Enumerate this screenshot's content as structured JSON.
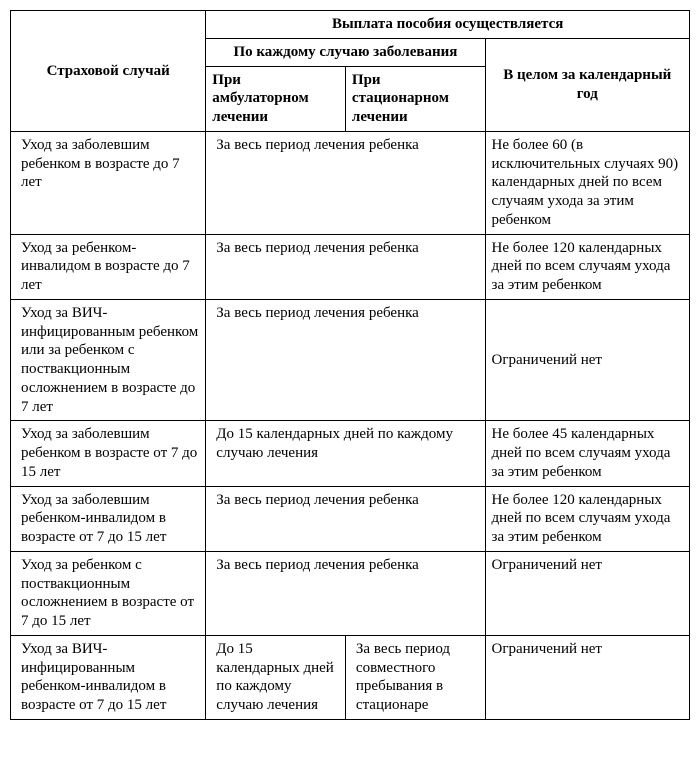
{
  "header": {
    "col1": "Страховой случай",
    "top": "Выплата пособия осуществляется",
    "mid_left": "По каждому случаю заболевания",
    "mid_right": "В целом за календарный год",
    "sub_left": "При амбулаторном лечении",
    "sub_right": "При стационарном лечении"
  },
  "rows": [
    {
      "case": "Уход за заболевшим ребенком в возрасте до 7 лет",
      "per_case": "За весь период лечения ребенка",
      "per_year": "Не более 60 (в исключительных случаях 90) календарных дней по всем случаям ухода за этим ребенком"
    },
    {
      "case": "Уход за ребенком-инвалидом в возрасте до 7 лет",
      "per_case": "За весь период лечения ребенка",
      "per_year": "Не более 120 календарных дней по всем случаям ухода за этим ребенком"
    },
    {
      "case": "Уход за ВИЧ-инфицированным ребенком или за ребенком с поствакционным осложнением в возрасте до 7 лет",
      "per_case": "За весь период лечения ребенка",
      "per_year": "Ограничений нет"
    },
    {
      "case": "Уход за заболевшим ребенком в возрасте от 7 до 15 лет",
      "per_case": "До 15 календарных дней по каждому случаю лечения",
      "per_year": "Не более 45 календарных дней по всем случаям ухода за этим ребенком"
    },
    {
      "case": "Уход за заболевшим ребенком-инвалидом в возрасте от 7 до 15 лет",
      "per_case": "За весь период лечения ребенка",
      "per_year": "Не более 120 календарных дней по всем случаям ухода за этим ребенком"
    },
    {
      "case": "Уход за ребенком с поствакционным осложнением в возрасте от 7 до 15 лет",
      "per_case": "За весь период лечения ребенка",
      "per_year": "Ограничений нет"
    },
    {
      "case": "Уход за ВИЧ-инфицированным ребенком-инвалидом в возрасте от 7 до 15 лет",
      "amb": "До 15 календарных дней по каждому случаю лечения",
      "stat": "За весь период совместного пребывания в стационаре",
      "per_year": "Ограничений нет"
    }
  ],
  "style": {
    "font_family": "Times New Roman",
    "font_size_pt": 11,
    "border_color": "#000000",
    "background_color": "#ffffff",
    "text_color": "#000000"
  }
}
